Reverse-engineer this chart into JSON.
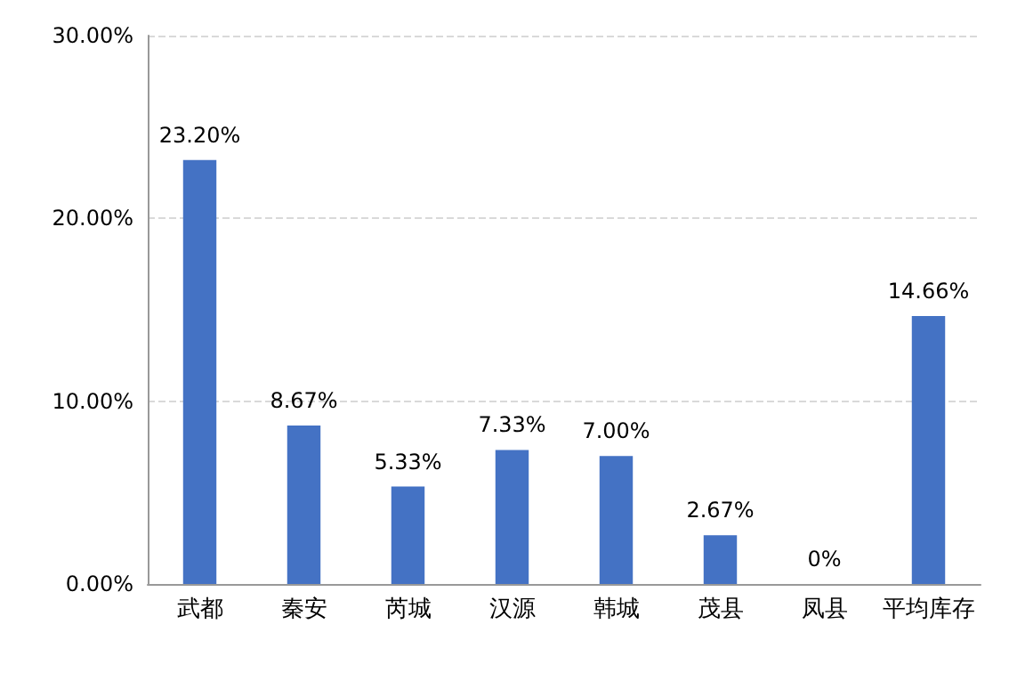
{
  "chart_data": {
    "type": "bar",
    "categories": [
      "武都",
      "秦安",
      "芮城",
      "汉源",
      "韩城",
      "茂县",
      "凤县",
      "平均库存"
    ],
    "values": [
      23.2,
      8.67,
      5.33,
      7.33,
      7.0,
      2.67,
      0,
      14.66
    ],
    "value_labels": [
      "23.20%",
      "8.67%",
      "5.33%",
      "7.33%",
      "7.00%",
      "2.67%",
      "0%",
      "14.66%"
    ],
    "color": "#4472c4",
    "ylim": [
      0,
      30
    ],
    "yticks": [
      {
        "value": 0,
        "label": "0.00%"
      },
      {
        "value": 10,
        "label": "10.00%"
      },
      {
        "value": 20,
        "label": "20.00%"
      },
      {
        "value": 30,
        "label": "30.00%"
      }
    ],
    "grid": "y"
  }
}
